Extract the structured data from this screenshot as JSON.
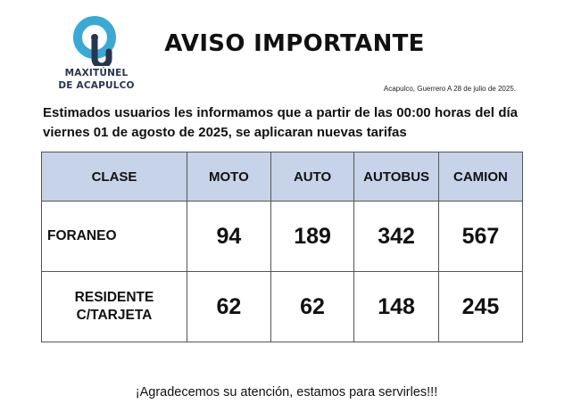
{
  "logo": {
    "line1": "MAXITÚNEL",
    "line2": "DE ACAPULCO",
    "accent": "#3aa9d6",
    "dark": "#27364f"
  },
  "title": "AVISO IMPORTANTE",
  "date": "Acapulco, Guerrero A 28 de julio de 2025.",
  "intro": "Estimados usuarios les informamos que a partir de las 00:00 horas del día viernes 01 de agosto de 2025, se aplicaran nuevas tarifas",
  "table": {
    "header_bg": "#c6d3e8",
    "headers": [
      "CLASE",
      "MOTO",
      "AUTO",
      "AUTOBUS",
      "CAMION"
    ],
    "rows": [
      {
        "line1": "FORANEO",
        "line2": "",
        "values": [
          "94",
          "189",
          "342",
          "567"
        ]
      },
      {
        "line1": "RESIDENTE",
        "line2": "C/TARJETA",
        "values": [
          "62",
          "62",
          "148",
          "245"
        ]
      }
    ]
  },
  "footer": "¡Agradecemos su atención, estamos para servirles!!!"
}
